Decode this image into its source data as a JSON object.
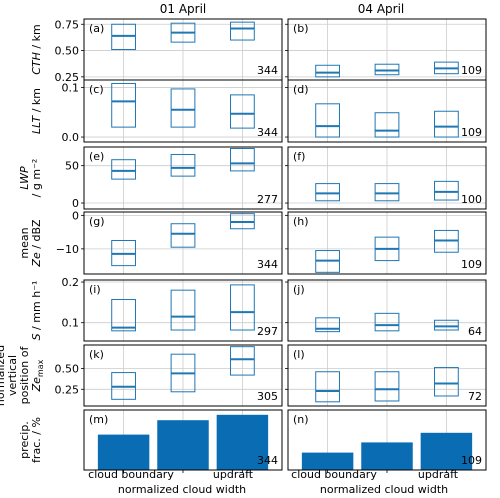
{
  "colors": {
    "box": "#1f77b4",
    "median": "#1f77b4",
    "bar": "#0a6db3",
    "grid": "#cccccc",
    "axis": "#000000"
  },
  "columns": [
    "01 April",
    "04 April"
  ],
  "xlabel": "normalized cloud width",
  "categories": [
    "cloud boundary",
    "",
    "updraft"
  ],
  "chart_data": [
    {
      "panel": "(a)",
      "type": "box",
      "ylabel": [
        "CTH / km"
      ],
      "ylim": [
        0.22,
        0.8
      ],
      "ticks": [
        {
          "v": 0.25,
          "t": "0.25"
        },
        {
          "v": 0.5,
          "t": "0.50"
        },
        {
          "v": 0.75,
          "t": "0.75"
        }
      ],
      "boxes": [
        {
          "q1": 0.51,
          "med": 0.64,
          "q3": 0.75
        },
        {
          "q1": 0.58,
          "med": 0.67,
          "q3": 0.76
        },
        {
          "q1": 0.6,
          "med": 0.71,
          "q3": 0.77
        }
      ],
      "n": "344"
    },
    {
      "panel": "(b)",
      "type": "box",
      "ylim": [
        0.22,
        0.8
      ],
      "ticks": [
        {
          "v": 0.25,
          "t": ""
        },
        {
          "v": 0.5,
          "t": ""
        },
        {
          "v": 0.75,
          "t": ""
        }
      ],
      "boxes": [
        {
          "q1": 0.25,
          "med": 0.29,
          "q3": 0.36
        },
        {
          "q1": 0.27,
          "med": 0.31,
          "q3": 0.37
        },
        {
          "q1": 0.28,
          "med": 0.33,
          "q3": 0.39
        }
      ],
      "n": "109"
    },
    {
      "panel": "(c)",
      "type": "box",
      "ylabel": [
        "LLT / km"
      ],
      "ylim": [
        -0.01,
        0.115
      ],
      "ticks": [
        {
          "v": 0.0,
          "t": "0.0"
        },
        {
          "v": 0.1,
          "t": "0.1"
        }
      ],
      "boxes": [
        {
          "q1": 0.02,
          "med": 0.072,
          "q3": 0.108
        },
        {
          "q1": 0.02,
          "med": 0.055,
          "q3": 0.097
        },
        {
          "q1": 0.018,
          "med": 0.047,
          "q3": 0.085
        }
      ],
      "n": "344"
    },
    {
      "panel": "(d)",
      "type": "box",
      "ylim": [
        -0.01,
        0.115
      ],
      "ticks": [
        {
          "v": 0.0,
          "t": ""
        },
        {
          "v": 0.1,
          "t": ""
        }
      ],
      "boxes": [
        {
          "q1": 0.0,
          "med": 0.022,
          "q3": 0.067
        },
        {
          "q1": 0.0,
          "med": 0.013,
          "q3": 0.049
        },
        {
          "q1": 0.0,
          "med": 0.021,
          "q3": 0.052
        }
      ],
      "n": "109"
    },
    {
      "panel": "(e)",
      "type": "box",
      "ylabel": [
        "LWP",
        "/ g m⁻²"
      ],
      "ylim": [
        -8,
        75
      ],
      "ticks": [
        {
          "v": 0,
          "t": "0"
        },
        {
          "v": 50,
          "t": "50"
        }
      ],
      "boxes": [
        {
          "q1": 32,
          "med": 43,
          "q3": 58
        },
        {
          "q1": 36,
          "med": 47,
          "q3": 65
        },
        {
          "q1": 43,
          "med": 53,
          "q3": 73
        }
      ],
      "n": "277"
    },
    {
      "panel": "(f)",
      "type": "box",
      "ylim": [
        -8,
        75
      ],
      "ticks": [
        {
          "v": 0,
          "t": ""
        },
        {
          "v": 50,
          "t": ""
        }
      ],
      "boxes": [
        {
          "q1": 3,
          "med": 13,
          "q3": 26
        },
        {
          "q1": 3,
          "med": 13,
          "q3": 26
        },
        {
          "q1": 4,
          "med": 15,
          "q3": 29
        }
      ],
      "n": "100"
    },
    {
      "panel": "(g)",
      "type": "box",
      "ylabel": [
        "mean",
        "Ze / dBZ"
      ],
      "ylim": [
        -17.5,
        1
      ],
      "ticks": [
        {
          "v": -10,
          "t": "−10"
        },
        {
          "v": 0,
          "t": "0"
        }
      ],
      "boxes": [
        {
          "q1": -15.0,
          "med": -11.5,
          "q3": -7.5
        },
        {
          "q1": -9.5,
          "med": -5.5,
          "q3": -2.5
        },
        {
          "q1": -4.0,
          "med": -2.0,
          "q3": 0.5
        }
      ],
      "n": "344"
    },
    {
      "panel": "(h)",
      "type": "box",
      "ylim": [
        -17.5,
        1
      ],
      "ticks": [
        {
          "v": -10,
          "t": ""
        },
        {
          "v": 0,
          "t": ""
        }
      ],
      "boxes": [
        {
          "q1": -17.0,
          "med": -13.5,
          "q3": -10.5
        },
        {
          "q1": -13.5,
          "med": -10.0,
          "q3": -6.5
        },
        {
          "q1": -11.0,
          "med": -7.5,
          "q3": -4.5
        }
      ],
      "n": "109"
    },
    {
      "panel": "(i)",
      "type": "box",
      "ylabel": [
        "S / mm h⁻¹"
      ],
      "ylim": [
        0.055,
        0.205
      ],
      "ticks": [
        {
          "v": 0.1,
          "t": "0.1"
        },
        {
          "v": 0.2,
          "t": "0.2"
        }
      ],
      "boxes": [
        {
          "q1": 0.08,
          "med": 0.088,
          "q3": 0.157
        },
        {
          "q1": 0.082,
          "med": 0.115,
          "q3": 0.18
        },
        {
          "q1": 0.082,
          "med": 0.126,
          "q3": 0.193
        }
      ],
      "n": "297"
    },
    {
      "panel": "(j)",
      "type": "box",
      "ylim": [
        0.055,
        0.205
      ],
      "ticks": [
        {
          "v": 0.1,
          "t": ""
        },
        {
          "v": 0.2,
          "t": ""
        }
      ],
      "boxes": [
        {
          "q1": 0.078,
          "med": 0.085,
          "q3": 0.112
        },
        {
          "q1": 0.08,
          "med": 0.094,
          "q3": 0.123
        },
        {
          "q1": 0.082,
          "med": 0.091,
          "q3": 0.106
        }
      ],
      "n": "64"
    },
    {
      "panel": "(k)",
      "type": "box",
      "ylabel": [
        "normalized",
        "vertical",
        "position of",
        "Ze_max"
      ],
      "ylim": [
        0.05,
        0.78
      ],
      "ticks": [
        {
          "v": 0.25,
          "t": "0.25"
        },
        {
          "v": 0.5,
          "t": "0.50"
        }
      ],
      "boxes": [
        {
          "q1": 0.13,
          "med": 0.28,
          "q3": 0.45
        },
        {
          "q1": 0.22,
          "med": 0.44,
          "q3": 0.67
        },
        {
          "q1": 0.42,
          "med": 0.61,
          "q3": 0.76
        }
      ],
      "n": "305"
    },
    {
      "panel": "(l)",
      "type": "box",
      "ylim": [
        0.05,
        0.78
      ],
      "ticks": [
        {
          "v": 0.25,
          "t": ""
        },
        {
          "v": 0.5,
          "t": ""
        }
      ],
      "boxes": [
        {
          "q1": 0.1,
          "med": 0.23,
          "q3": 0.46
        },
        {
          "q1": 0.11,
          "med": 0.25,
          "q3": 0.46
        },
        {
          "q1": 0.17,
          "med": 0.32,
          "q3": 0.51
        }
      ],
      "n": "72"
    },
    {
      "panel": "(m)",
      "type": "bar",
      "ylabel": [
        "precip.",
        "frac. / %"
      ],
      "ylim": [
        0,
        100
      ],
      "ticks": [],
      "values": [
        59,
        83,
        92
      ],
      "n": "344"
    },
    {
      "panel": "(n)",
      "type": "bar",
      "ylim": [
        0,
        100
      ],
      "ticks": [],
      "values": [
        29,
        46,
        62
      ],
      "n": "109"
    }
  ]
}
